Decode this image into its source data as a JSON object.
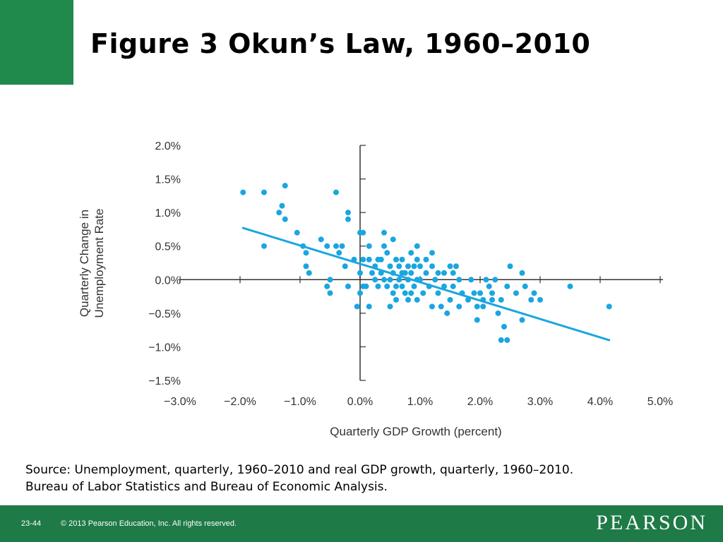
{
  "slide": {
    "title": "Figure 3  Okun’s Law, 1960–2010",
    "source_line1": "Source: Unemployment, quarterly, 1960–2010 and real GDP growth, quarterly, 1960–2010.",
    "source_line2": "Bureau of Labor Statistics and Bureau of Economic Analysis.",
    "slide_number": "23-44",
    "copyright": "© 2013 Pearson Education, Inc. All rights reserved.",
    "publisher": "PEARSON"
  },
  "colors": {
    "points": "#1aa6e0",
    "trend_line": "#1aa6e0",
    "axis": "#333333",
    "footer": "#1e7a46"
  },
  "chart_data": {
    "type": "scatter",
    "xlabel": "Quarterly GDP Growth (percent)",
    "ylabel": "Quarterly Change in Unemployment Rate",
    "xlim": [
      -3.0,
      5.0
    ],
    "ylim": [
      -1.5,
      2.0
    ],
    "x_ticks": [
      -3.0,
      -2.0,
      -1.0,
      0.0,
      1.0,
      2.0,
      3.0,
      4.0,
      5.0
    ],
    "x_tick_labels": [
      "−3.0%",
      "−2.0%",
      "−1.0%",
      "0.0%",
      "1.0%",
      "2.0%",
      "3.0%",
      "4.0%",
      "5.0%"
    ],
    "y_ticks": [
      2.0,
      1.5,
      1.0,
      0.5,
      0.0,
      -0.5,
      -1.0,
      -1.5
    ],
    "y_tick_labels": [
      "2.0%",
      "1.5%",
      "1.0%",
      "0.5%",
      "0.0%",
      "−0.5%",
      "−1.0%",
      "−1.5%"
    ],
    "trend_line": {
      "x": [
        -1.95,
        4.15
      ],
      "y": [
        0.77,
        -0.9
      ]
    },
    "points": [
      [
        -1.95,
        1.3
      ],
      [
        -1.6,
        1.3
      ],
      [
        -1.25,
        1.4
      ],
      [
        -1.6,
        0.5
      ],
      [
        -1.35,
        1.0
      ],
      [
        -1.3,
        1.1
      ],
      [
        -1.25,
        0.9
      ],
      [
        -1.05,
        0.7
      ],
      [
        -0.95,
        0.5
      ],
      [
        -0.9,
        0.4
      ],
      [
        -0.9,
        0.2
      ],
      [
        -0.85,
        0.1
      ],
      [
        -0.65,
        0.6
      ],
      [
        -0.55,
        0.5
      ],
      [
        -0.55,
        -0.1
      ],
      [
        -0.5,
        0.0
      ],
      [
        -0.5,
        -0.2
      ],
      [
        -0.4,
        0.5
      ],
      [
        -0.4,
        1.3
      ],
      [
        -0.35,
        0.4
      ],
      [
        -0.3,
        0.5
      ],
      [
        -0.25,
        0.2
      ],
      [
        -0.2,
        1.0
      ],
      [
        -0.2,
        0.9
      ],
      [
        -0.2,
        -0.1
      ],
      [
        -0.1,
        0.3
      ],
      [
        -0.05,
        -0.4
      ],
      [
        0.0,
        0.7
      ],
      [
        0.05,
        0.7
      ],
      [
        0.05,
        0.3
      ],
      [
        0.0,
        0.1
      ],
      [
        0.05,
        -0.1
      ],
      [
        0.1,
        -0.1
      ],
      [
        0.0,
        -0.2
      ],
      [
        0.15,
        0.5
      ],
      [
        0.15,
        0.3
      ],
      [
        0.15,
        -0.4
      ],
      [
        0.2,
        0.1
      ],
      [
        0.25,
        0.2
      ],
      [
        0.25,
        0.0
      ],
      [
        0.3,
        0.3
      ],
      [
        0.3,
        -0.1
      ],
      [
        0.35,
        0.3
      ],
      [
        0.35,
        0.1
      ],
      [
        0.4,
        0.7
      ],
      [
        0.4,
        0.5
      ],
      [
        0.4,
        0.0
      ],
      [
        0.45,
        0.4
      ],
      [
        0.45,
        -0.1
      ],
      [
        0.5,
        0.2
      ],
      [
        0.5,
        0.0
      ],
      [
        0.5,
        -0.4
      ],
      [
        0.55,
        0.6
      ],
      [
        0.55,
        0.1
      ],
      [
        0.55,
        -0.2
      ],
      [
        0.6,
        0.3
      ],
      [
        0.6,
        -0.1
      ],
      [
        0.6,
        -0.3
      ],
      [
        0.65,
        0.2
      ],
      [
        0.65,
        0.0
      ],
      [
        0.7,
        0.3
      ],
      [
        0.7,
        0.1
      ],
      [
        0.7,
        -0.1
      ],
      [
        0.75,
        0.1
      ],
      [
        0.75,
        -0.2
      ],
      [
        0.8,
        0.2
      ],
      [
        0.8,
        0.0
      ],
      [
        0.8,
        -0.3
      ],
      [
        0.85,
        0.4
      ],
      [
        0.85,
        0.1
      ],
      [
        0.85,
        -0.2
      ],
      [
        0.9,
        0.2
      ],
      [
        0.9,
        -0.1
      ],
      [
        0.95,
        0.5
      ],
      [
        0.95,
        0.3
      ],
      [
        0.95,
        0.0
      ],
      [
        0.95,
        -0.3
      ],
      [
        1.0,
        0.2
      ],
      [
        1.0,
        0.0
      ],
      [
        1.05,
        -0.2
      ],
      [
        1.1,
        0.3
      ],
      [
        1.1,
        0.1
      ],
      [
        1.15,
        -0.1
      ],
      [
        1.2,
        0.4
      ],
      [
        1.2,
        0.2
      ],
      [
        1.2,
        -0.4
      ],
      [
        1.25,
        0.0
      ],
      [
        1.3,
        0.1
      ],
      [
        1.3,
        -0.2
      ],
      [
        1.35,
        -0.4
      ],
      [
        1.4,
        0.1
      ],
      [
        1.4,
        -0.1
      ],
      [
        1.45,
        -0.5
      ],
      [
        1.5,
        0.2
      ],
      [
        1.5,
        -0.3
      ],
      [
        1.55,
        0.1
      ],
      [
        1.55,
        -0.1
      ],
      [
        1.6,
        0.2
      ],
      [
        1.65,
        0.0
      ],
      [
        1.65,
        -0.4
      ],
      [
        1.7,
        -0.2
      ],
      [
        1.8,
        -0.3
      ],
      [
        1.85,
        0.0
      ],
      [
        1.9,
        -0.2
      ],
      [
        1.95,
        -0.4
      ],
      [
        1.95,
        -0.6
      ],
      [
        2.0,
        -0.2
      ],
      [
        2.05,
        -0.3
      ],
      [
        2.05,
        -0.4
      ],
      [
        2.1,
        0.0
      ],
      [
        2.15,
        -0.1
      ],
      [
        2.2,
        -0.2
      ],
      [
        2.2,
        -0.3
      ],
      [
        2.25,
        0.0
      ],
      [
        2.3,
        -0.5
      ],
      [
        2.35,
        -0.3
      ],
      [
        2.35,
        -0.9
      ],
      [
        2.4,
        -0.7
      ],
      [
        2.45,
        -0.9
      ],
      [
        2.45,
        -0.1
      ],
      [
        2.5,
        0.2
      ],
      [
        2.6,
        -0.2
      ],
      [
        2.7,
        0.1
      ],
      [
        2.7,
        -0.6
      ],
      [
        2.75,
        -0.1
      ],
      [
        2.85,
        -0.3
      ],
      [
        2.9,
        -0.2
      ],
      [
        3.0,
        -0.3
      ],
      [
        3.5,
        -0.1
      ],
      [
        4.15,
        -0.4
      ]
    ]
  }
}
